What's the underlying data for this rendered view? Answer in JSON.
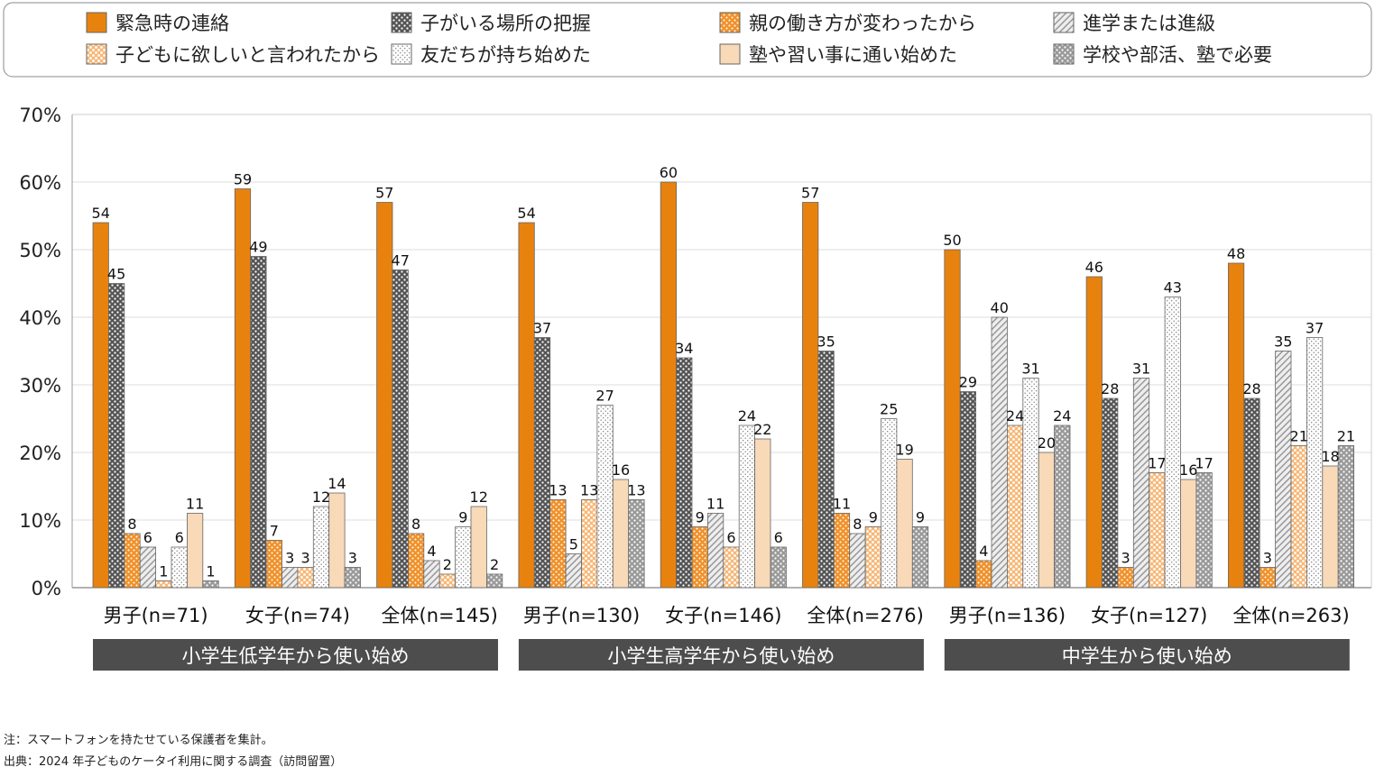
{
  "chart_data": {
    "type": "bar",
    "ylim": [
      0,
      70
    ],
    "yticks": [
      "0%",
      "10%",
      "20%",
      "30%",
      "40%",
      "50%",
      "60%",
      "70%"
    ],
    "grid": true,
    "legend_position": "top",
    "categories": [
      "男子(n=71)",
      "女子(n=74)",
      "全体(n=145)",
      "男子(n=130)",
      "女子(n=146)",
      "全体(n=276)",
      "男子(n=136)",
      "女子(n=127)",
      "全体(n=263)"
    ],
    "sections": [
      "小学生低学年から使い始め",
      "小学生高学年から使い始め",
      "中学生から使い始め"
    ],
    "series": [
      {
        "name": "緊急時の連絡",
        "pattern": "solid-orange",
        "values": [
          54,
          59,
          57,
          54,
          60,
          57,
          50,
          46,
          48
        ]
      },
      {
        "name": "子がいる場所の把握",
        "pattern": "dark-crosshatch",
        "values": [
          45,
          49,
          47,
          37,
          34,
          35,
          29,
          28,
          28
        ]
      },
      {
        "name": "親の働き方が変わったから",
        "pattern": "orange-dots",
        "values": [
          8,
          7,
          8,
          13,
          9,
          11,
          4,
          3,
          3
        ]
      },
      {
        "name": "進学または進級",
        "pattern": "gray-diagonal",
        "values": [
          6,
          3,
          4,
          5,
          11,
          8,
          40,
          31,
          35
        ]
      },
      {
        "name": "子どもに欲しいと言われたから",
        "pattern": "light-orange-dots",
        "values": [
          1,
          3,
          2,
          13,
          6,
          9,
          24,
          17,
          21
        ]
      },
      {
        "name": "友だちが持ち始めた",
        "pattern": "white-dots",
        "values": [
          6,
          12,
          9,
          27,
          24,
          25,
          31,
          43,
          37
        ]
      },
      {
        "name": "塾や習い事に通い始めた",
        "pattern": "solid-peach",
        "values": [
          11,
          14,
          12,
          16,
          22,
          19,
          20,
          16,
          18
        ]
      },
      {
        "name": "学校や部活、塾で必要",
        "pattern": "gray-crosshatch",
        "values": [
          1,
          3,
          2,
          13,
          6,
          9,
          24,
          17,
          21
        ]
      }
    ]
  },
  "notes": {
    "note": "注：スマートフォンを持たせている保護者を集計。",
    "source": "出典：2024 年子どものケータイ利用に関する調査（訪問留置）"
  }
}
